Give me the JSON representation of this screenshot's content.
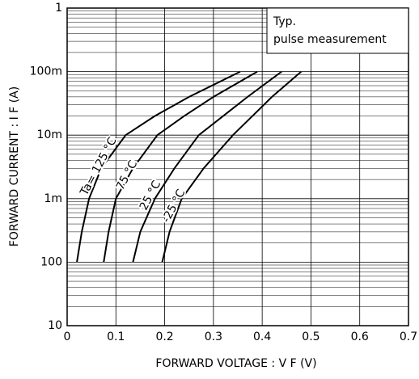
{
  "chart_data": {
    "type": "line",
    "x_label": "FORWARD  VOLTAGE : V F  (V)",
    "y_label": "FORWARD  CURRENT : I F  (A)",
    "annotation": [
      "Typ.",
      "pulse measurement"
    ],
    "log_y": true,
    "grid": true,
    "xlim": [
      0,
      0.7
    ],
    "xticks": [
      0,
      0.1,
      0.2,
      0.3,
      0.4,
      0.5,
      0.6,
      0.7
    ],
    "ylim": [
      1e-05,
      1
    ],
    "yticks": [
      {
        "value": 1e-05,
        "label": "10"
      },
      {
        "value": 0.0001,
        "label": "100"
      },
      {
        "value": 0.001,
        "label": "1m"
      },
      {
        "value": 0.01,
        "label": "10m"
      },
      {
        "value": 0.1,
        "label": "100m"
      },
      1
    ],
    "series": [
      {
        "name": "Ta= 125 °C",
        "color": "#000000",
        "x": [
          0.02,
          0.03,
          0.045,
          0.07,
          0.12,
          0.18,
          0.25,
          0.355
        ],
        "values": [
          0.0001,
          0.0003,
          0.001,
          0.003,
          0.01,
          0.02,
          0.04,
          0.1
        ]
      },
      {
        "name": "75 °C",
        "color": "#000000",
        "x": [
          0.075,
          0.085,
          0.1,
          0.135,
          0.185,
          0.24,
          0.3,
          0.39
        ],
        "values": [
          0.0001,
          0.0003,
          0.001,
          0.003,
          0.01,
          0.02,
          0.04,
          0.1
        ]
      },
      {
        "name": "25 °C",
        "color": "#000000",
        "x": [
          0.135,
          0.15,
          0.18,
          0.22,
          0.27,
          0.32,
          0.37,
          0.44
        ],
        "values": [
          0.0001,
          0.0003,
          0.001,
          0.003,
          0.01,
          0.02,
          0.04,
          0.1
        ]
      },
      {
        "name": "-25 °C",
        "color": "#000000",
        "x": [
          0.195,
          0.21,
          0.235,
          0.28,
          0.34,
          0.38,
          0.42,
          0.48
        ],
        "values": [
          0.0001,
          0.0003,
          0.001,
          0.003,
          0.01,
          0.02,
          0.04,
          0.1
        ]
      }
    ]
  }
}
